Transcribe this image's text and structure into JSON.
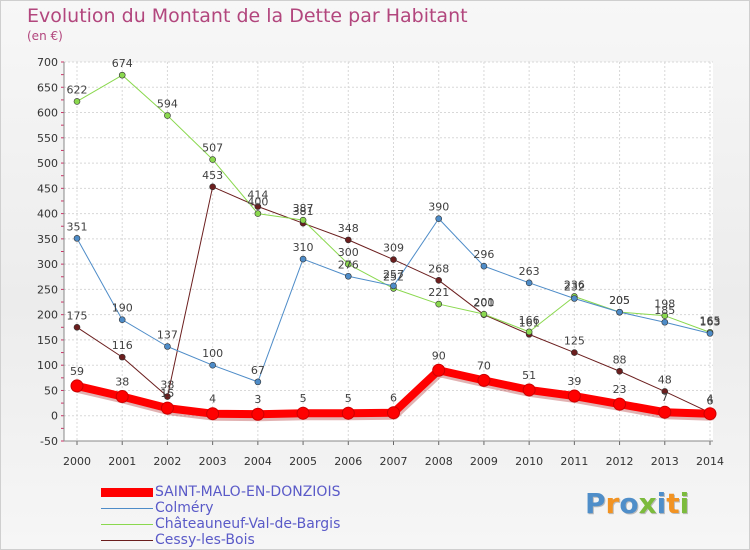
{
  "title": "Evolution du Montant de la Dette par Habitant",
  "subtitle": "(en €)",
  "logo": {
    "text": "Proxiti",
    "colors": [
      "#4f8ec9",
      "#f29322",
      "#4f8ec9",
      "#7cbb3d",
      "#4f8ec9",
      "#f29322",
      "#7cbb3d"
    ]
  },
  "chart_data": {
    "type": "line",
    "x": [
      "2000",
      "2001",
      "2002",
      "2003",
      "2004",
      "2005",
      "2006",
      "2007",
      "2008",
      "2009",
      "2010",
      "2011",
      "2012",
      "2013",
      "2014"
    ],
    "ylim": [
      -50,
      700
    ],
    "yticks": [
      -50,
      0,
      50,
      100,
      150,
      200,
      250,
      300,
      350,
      400,
      450,
      500,
      550,
      600,
      650,
      700
    ],
    "grid": true,
    "legend_position": "bottom-left",
    "series": [
      {
        "name": "Cessy-les-Bois",
        "color": "#6b1e1e",
        "width": 1,
        "values": [
          175,
          116,
          38,
          453,
          414,
          381,
          348,
          309,
          268,
          200,
          161,
          125,
          88,
          48,
          6
        ],
        "labels": [
          "175",
          "116",
          "38",
          "453",
          "414",
          "381",
          "348",
          "309",
          "268",
          "200",
          "161",
          "125",
          "88",
          "48",
          "6"
        ]
      },
      {
        "name": "Châteauneuf-Val-de-Bargis",
        "color": "#8ad84e",
        "width": 1,
        "values": [
          622,
          674,
          594,
          507,
          400,
          387,
          300,
          252,
          221,
          201,
          166,
          236,
          205,
          198,
          165
        ],
        "labels": [
          "622",
          "674",
          "594",
          "507",
          "400",
          "387",
          "300",
          "252",
          "221",
          "201",
          "166",
          "236",
          "205",
          "198",
          "165"
        ]
      },
      {
        "name": "Colméry",
        "color": "#4e8cc8",
        "width": 1,
        "values": [
          351,
          190,
          137,
          100,
          67,
          310,
          276,
          257,
          390,
          296,
          263,
          232,
          205,
          185,
          163
        ],
        "labels": [
          "351",
          "190",
          "137",
          "100",
          "67",
          "310",
          "276",
          "257",
          "390",
          "296",
          "263",
          "232",
          "205",
          "185",
          "163"
        ]
      },
      {
        "name": "SAINT-MALO-EN-DONZIOIS",
        "color": "#ff0000",
        "width": 8,
        "values": [
          59,
          38,
          15,
          4,
          3,
          5,
          5,
          6,
          90,
          70,
          51,
          39,
          23,
          7,
          4
        ],
        "labels": [
          "59",
          "38",
          "15",
          "4",
          "3",
          "5",
          "5",
          "6",
          "90",
          "70",
          "51",
          "39",
          "23",
          "7",
          "4"
        ]
      }
    ],
    "legend_order": [
      "SAINT-MALO-EN-DONZIOIS",
      "Colméry",
      "Châteauneuf-Val-de-Bargis",
      "Cessy-les-Bois"
    ]
  }
}
